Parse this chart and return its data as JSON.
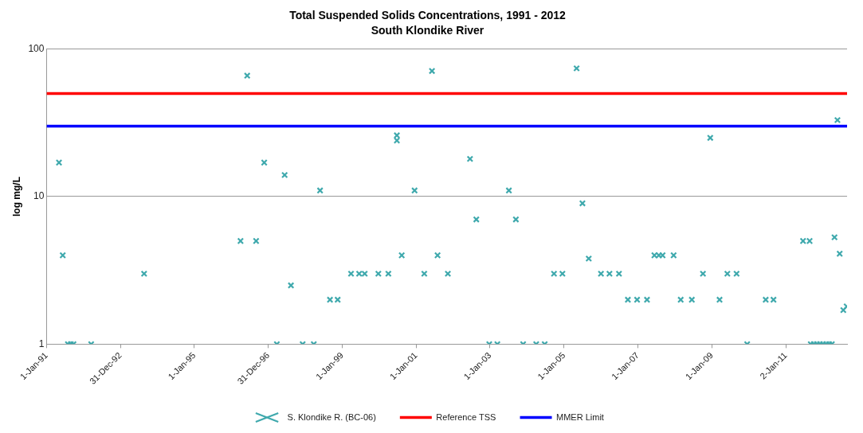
{
  "chart_data": {
    "type": "scatter",
    "title": "Total Suspended Solids Concentrations, 1991 - 2012",
    "subtitle": "South Klondike River",
    "ylabel": "log mg/L",
    "log": "y",
    "grid": "y",
    "legend": "bottom",
    "marker": "cross",
    "xlim": [
      "1991-01-01",
      "2012-08-29"
    ],
    "xticks": [
      {
        "value": "1991-01-01",
        "label": "1-Jan-91"
      },
      {
        "value": "1992-12-31",
        "label": "31-Dec-92"
      },
      {
        "value": "1995-01-01",
        "label": "1-Jan-95"
      },
      {
        "value": "1996-12-31",
        "label": "31-Dec-96"
      },
      {
        "value": "1999-01-01",
        "label": "1-Jan-99"
      },
      {
        "value": "2001-01-01",
        "label": "1-Jan-01"
      },
      {
        "value": "2003-01-01",
        "label": "1-Jan-03"
      },
      {
        "value": "2005-01-01",
        "label": "1-Jan-05"
      },
      {
        "value": "2007-01-01",
        "label": "1-Jan-07"
      },
      {
        "value": "2009-01-01",
        "label": "1-Jan-09"
      },
      {
        "value": "2011-01-02",
        "label": "2-Jan-11"
      }
    ],
    "ylim": [
      1,
      100
    ],
    "yticks": [
      1,
      10,
      100
    ],
    "ref_lines": [
      {
        "axis": "y",
        "value": 50,
        "label": "Reference TSS",
        "color": "#ff0000"
      },
      {
        "axis": "y",
        "value": 30,
        "label": "MMER Limit",
        "color": "#0000ff"
      }
    ],
    "series": [
      {
        "name": "S. Klondike R. (BC-06)",
        "color": "#3fa9ad",
        "x": [
          "1991-05-04",
          "1991-06-10",
          "1991-07-31",
          "1991-08-29",
          "1991-09-24",
          "1992-03-17",
          "1993-08-22",
          "1996-04-01",
          "1996-06-06",
          "1996-09-02",
          "1996-11-21",
          "1997-03-26",
          "1997-06-11",
          "1997-08-12",
          "1997-12-06",
          "1998-03-26",
          "1998-05-27",
          "1998-09-02",
          "1998-11-17",
          "1999-03-29",
          "1999-06-17",
          "1999-08-11",
          "1999-12-24",
          "2000-04-01",
          "2000-06-24",
          "2000-06-24",
          "2000-08-11",
          "2000-12-16",
          "2001-03-22",
          "2001-06-06",
          "2001-07-31",
          "2001-11-10",
          "2002-06-17",
          "2002-08-18",
          "2002-12-24",
          "2003-03-14",
          "2003-07-06",
          "2003-09-13",
          "2003-11-24",
          "2004-04-01",
          "2004-06-24",
          "2004-09-24",
          "2004-12-16",
          "2005-05-05",
          "2005-07-02",
          "2005-09-02",
          "2006-01-01",
          "2006-03-26",
          "2006-06-28",
          "2006-09-24",
          "2006-12-24",
          "2007-04-01",
          "2007-06-13",
          "2007-07-27",
          "2007-09-02",
          "2007-12-20",
          "2008-02-28",
          "2008-06-17",
          "2008-10-05",
          "2008-12-16",
          "2009-03-18",
          "2009-06-03",
          "2009-09-02",
          "2009-12-16",
          "2010-06-17",
          "2010-09-02",
          "2011-06-21",
          "2011-08-25",
          "2011-09-05",
          "2011-10-05",
          "2011-11-05",
          "2011-12-05",
          "2012-01-05",
          "2012-02-05",
          "2012-03-05",
          "2012-04-01",
          "2012-04-27",
          "2012-05-26",
          "2012-06-17",
          "2012-07-23",
          "2012-08-25"
        ],
        "values": [
          17,
          4,
          1,
          1,
          1,
          1,
          3,
          5,
          66,
          5,
          17,
          1,
          14,
          2.5,
          1,
          1,
          11,
          2,
          2,
          3,
          3,
          3,
          3,
          3,
          26,
          24,
          4,
          11,
          3,
          71,
          4,
          3,
          18,
          7,
          1,
          1,
          11,
          7,
          1,
          1,
          1,
          3,
          3,
          74,
          9,
          3.8,
          3,
          3,
          3,
          2,
          2,
          2,
          4,
          4,
          4,
          4,
          2,
          2,
          3,
          25,
          2,
          3,
          3,
          1,
          2,
          2,
          5,
          5,
          1,
          1,
          1,
          1,
          1,
          1,
          1,
          1,
          5.3,
          33,
          4.1,
          1.7,
          1.8
        ]
      }
    ]
  }
}
